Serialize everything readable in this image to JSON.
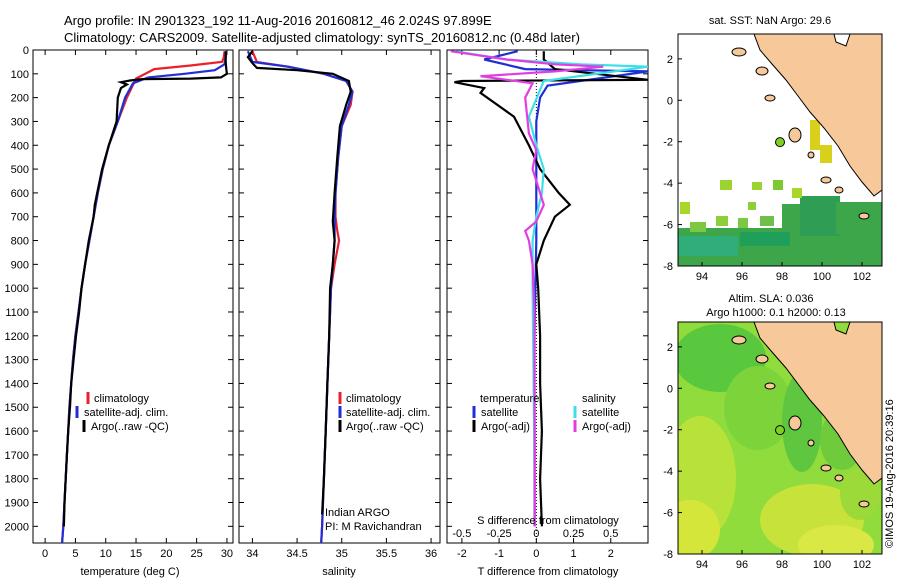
{
  "header": {
    "line1": "Argo profile: IN 2901323_192 11-Aug-2016 20160812_46 2.024S 97.899E",
    "line2": "Climatology: CARS2009. Satellite-adjusted climatology: synTS_20160812.nc (0.48d later)"
  },
  "credit": "©IMOS 19-Aug-2016 20:39:16",
  "colors": {
    "climatology": "#e8212b",
    "satellite": "#1f2fd6",
    "argo": "#000000",
    "satellite_salinity": "#3de0e8",
    "argo_salinity_diff": "#e23de0",
    "land": "#f7c89a",
    "ocean_sst": "#ffffff",
    "ocean_sla": "#8fdc3c",
    "profile_marker": "#7ed321"
  },
  "chart_data": [
    {
      "type": "line",
      "panel": "temperature",
      "xlabel": "temperature (deg C)",
      "xlim": [
        -2,
        31
      ],
      "xticks": [
        "0",
        "5",
        "10",
        "15",
        "20",
        "25",
        "30"
      ],
      "ylim": [
        2070,
        0
      ],
      "yticks": [
        "0",
        "100",
        "200",
        "300",
        "400",
        "500",
        "600",
        "700",
        "800",
        "900",
        "1000",
        "1100",
        "1200",
        "1300",
        "1400",
        "1500",
        "1600",
        "1700",
        "1800",
        "1900",
        "2000"
      ],
      "legend": [
        "climatology",
        "satellite-adj. clim.",
        "Argo(..raw -QC)"
      ],
      "series": [
        {
          "name": "climatology",
          "color_key": "climatology",
          "points": [
            [
              29.6,
              5
            ],
            [
              29.5,
              30
            ],
            [
              29.2,
              50
            ],
            [
              24,
              65
            ],
            [
              18,
              80
            ],
            [
              15,
              120
            ],
            [
              13.5,
              200
            ],
            [
              12,
              300
            ],
            [
              10.5,
              400
            ],
            [
              9.5,
              500
            ],
            [
              8.7,
              600
            ],
            [
              8.0,
              700
            ],
            [
              7.3,
              800
            ],
            [
              6.6,
              900
            ],
            [
              6.0,
              1000
            ],
            [
              5.5,
              1100
            ],
            [
              5.0,
              1200
            ],
            [
              4.6,
              1300
            ],
            [
              4.3,
              1400
            ],
            [
              4.0,
              1500
            ],
            [
              3.8,
              1600
            ],
            [
              3.6,
              1700
            ],
            [
              3.4,
              1800
            ],
            [
              3.2,
              1900
            ],
            [
              3.0,
              2000
            ],
            [
              2.8,
              2070
            ]
          ]
        },
        {
          "name": "satellite-adj. clim.",
          "color_key": "satellite",
          "points": [
            [
              29.9,
              5
            ],
            [
              29.8,
              30
            ],
            [
              29.6,
              60
            ],
            [
              28,
              85
            ],
            [
              23,
              100
            ],
            [
              17,
              115
            ],
            [
              14.5,
              140
            ],
            [
              13.2,
              200
            ],
            [
              12,
              300
            ],
            [
              10.5,
              400
            ],
            [
              9.5,
              500
            ],
            [
              8.7,
              600
            ],
            [
              8.0,
              700
            ],
            [
              7.3,
              800
            ],
            [
              6.6,
              900
            ],
            [
              6.0,
              1000
            ],
            [
              5.5,
              1100
            ],
            [
              5.0,
              1200
            ],
            [
              4.6,
              1300
            ],
            [
              4.3,
              1400
            ],
            [
              4.0,
              1500
            ],
            [
              3.8,
              1600
            ],
            [
              3.6,
              1700
            ],
            [
              3.4,
              1800
            ],
            [
              3.2,
              1900
            ],
            [
              3.0,
              2000
            ],
            [
              2.8,
              2070
            ]
          ]
        },
        {
          "name": "Argo(..raw -QC)",
          "color_key": "argo",
          "points": [
            [
              29.8,
              5
            ],
            [
              29.8,
              50
            ],
            [
              29.9,
              80
            ],
            [
              30,
              100
            ],
            [
              29,
              115
            ],
            [
              24,
              120
            ],
            [
              16,
              122
            ],
            [
              14,
              128
            ],
            [
              12.5,
              135
            ],
            [
              13.5,
              145
            ],
            [
              12.5,
              160
            ],
            [
              12,
              200
            ],
            [
              11.8,
              300
            ],
            [
              10.5,
              400
            ],
            [
              9.4,
              500
            ],
            [
              8.6,
              600
            ],
            [
              8.2,
              650
            ],
            [
              8.0,
              700
            ],
            [
              7.2,
              800
            ],
            [
              6.6,
              900
            ],
            [
              6.0,
              1000
            ],
            [
              5.6,
              1100
            ],
            [
              5.1,
              1200
            ],
            [
              4.7,
              1300
            ],
            [
              4.3,
              1400
            ],
            [
              4.1,
              1500
            ],
            [
              3.8,
              1600
            ],
            [
              3.6,
              1700
            ],
            [
              3.4,
              1800
            ],
            [
              3.2,
              1900
            ],
            [
              3.1,
              2000
            ]
          ]
        }
      ]
    },
    {
      "type": "line",
      "panel": "salinity",
      "xlabel": "salinity",
      "xlim": [
        33.85,
        36.1
      ],
      "xticks": [
        "34",
        "34.5",
        "35",
        "35.5",
        "36"
      ],
      "ylim": [
        2070,
        0
      ],
      "legend": [
        "climatology",
        "satellite-adj. clim.",
        "Argo(..raw -QC)"
      ],
      "annotations": [
        "Indian ARGO",
        "PI: M Ravichandran"
      ],
      "series": [
        {
          "name": "climatology",
          "color_key": "climatology",
          "points": [
            [
              34.0,
              5
            ],
            [
              34.05,
              50
            ],
            [
              34.4,
              70
            ],
            [
              34.8,
              100
            ],
            [
              35.05,
              130
            ],
            [
              35.12,
              175
            ],
            [
              35.1,
              230
            ],
            [
              35.0,
              320
            ],
            [
              34.96,
              450
            ],
            [
              34.93,
              600
            ],
            [
              34.93,
              700
            ],
            [
              34.95,
              760
            ],
            [
              34.97,
              800
            ],
            [
              34.92,
              900
            ],
            [
              34.88,
              1000
            ],
            [
              34.86,
              1200
            ],
            [
              34.84,
              1400
            ],
            [
              34.82,
              1600
            ],
            [
              34.8,
              1800
            ],
            [
              34.78,
              2000
            ],
            [
              34.77,
              2070
            ]
          ]
        },
        {
          "name": "satellite-adj. clim.",
          "color_key": "satellite",
          "points": [
            [
              33.95,
              5
            ],
            [
              34.0,
              50
            ],
            [
              34.4,
              70
            ],
            [
              34.8,
              100
            ],
            [
              35.05,
              130
            ],
            [
              35.12,
              175
            ],
            [
              35.08,
              230
            ],
            [
              35.0,
              320
            ],
            [
              34.96,
              450
            ],
            [
              34.93,
              600
            ],
            [
              34.92,
              700
            ],
            [
              34.92,
              800
            ],
            [
              34.9,
              900
            ],
            [
              34.88,
              1000
            ],
            [
              34.86,
              1200
            ],
            [
              34.84,
              1400
            ],
            [
              34.82,
              1600
            ],
            [
              34.8,
              1800
            ],
            [
              34.78,
              2000
            ],
            [
              34.77,
              2070
            ]
          ]
        },
        {
          "name": "Argo(..raw -QC)",
          "color_key": "argo",
          "points": [
            [
              34.0,
              5
            ],
            [
              33.95,
              30
            ],
            [
              34.0,
              55
            ],
            [
              34.05,
              75
            ],
            [
              34.5,
              85
            ],
            [
              34.9,
              100
            ],
            [
              35.08,
              130
            ],
            [
              35.1,
              175
            ],
            [
              35.05,
              230
            ],
            [
              34.98,
              320
            ],
            [
              34.95,
              450
            ],
            [
              34.92,
              600
            ],
            [
              34.9,
              720
            ],
            [
              34.92,
              800
            ],
            [
              34.9,
              900
            ],
            [
              34.87,
              1000
            ],
            [
              34.86,
              1200
            ],
            [
              34.84,
              1400
            ],
            [
              34.82,
              1600
            ],
            [
              34.8,
              1800
            ],
            [
              34.78,
              1950
            ]
          ]
        }
      ]
    },
    {
      "type": "line",
      "panel": "difference",
      "xlabel": "T difference from climatology",
      "xlabel_top": "S difference from climatology",
      "xlim": [
        -2.4,
        3.0
      ],
      "xticks": [
        "-2",
        "-1",
        "0",
        "1",
        "2"
      ],
      "xticks_top": [
        "-0.5",
        "-0.25",
        "0",
        "0.25",
        "0.5"
      ],
      "ylim": [
        2070,
        0
      ],
      "legend": [
        {
          "group": "temperature",
          "items": [
            "satellite",
            "Argo(-adj)"
          ]
        },
        {
          "group": "salinity",
          "items": [
            "satellite",
            "Argo(-adj)"
          ]
        }
      ],
      "series": [
        {
          "name": "satellite",
          "group": "temperature",
          "color_key": "satellite",
          "points": [
            [
              -0.5,
              5
            ],
            [
              -1.4,
              40
            ],
            [
              -0.3,
              80
            ],
            [
              3.0,
              90
            ],
            [
              0.3,
              150
            ],
            [
              0.1,
              200
            ],
            [
              0.0,
              300
            ],
            [
              0.0,
              500
            ],
            [
              0.0,
              800
            ],
            [
              -0.05,
              1200
            ],
            [
              -0.05,
              1600
            ],
            [
              -0.05,
              2000
            ]
          ]
        },
        {
          "name": "Argo(-adj)",
          "group": "temperature",
          "color_key": "argo",
          "points": [
            [
              0.2,
              5
            ],
            [
              0.2,
              40
            ],
            [
              0.5,
              80
            ],
            [
              3.0,
              125
            ],
            [
              -2.0,
              130
            ],
            [
              -2.2,
              135
            ],
            [
              -1.4,
              160
            ],
            [
              -1.5,
              180
            ],
            [
              -0.6,
              280
            ],
            [
              -0.2,
              400
            ],
            [
              0.1,
              500
            ],
            [
              0.6,
              600
            ],
            [
              0.9,
              650
            ],
            [
              0.5,
              700
            ],
            [
              0.2,
              800
            ],
            [
              0.0,
              900
            ],
            [
              0.05,
              1000
            ],
            [
              0.1,
              1200
            ],
            [
              0.1,
              1400
            ],
            [
              0.15,
              1600
            ],
            [
              0.1,
              1800
            ],
            [
              0.15,
              2000
            ]
          ]
        },
        {
          "name": "satellite",
          "group": "salinity",
          "color_key": "satellite_salinity",
          "points": [
            [
              -2.2,
              5
            ],
            [
              -0.8,
              40
            ],
            [
              1.2,
              60
            ],
            [
              3.0,
              70
            ],
            [
              0.2,
              130
            ],
            [
              -0.2,
              280
            ],
            [
              0.0,
              400
            ],
            [
              0.2,
              500
            ],
            [
              0.15,
              600
            ],
            [
              0.0,
              700
            ],
            [
              -0.1,
              800
            ],
            [
              -0.1,
              1000
            ],
            [
              -0.08,
              1300
            ],
            [
              -0.06,
              1600
            ],
            [
              -0.04,
              2000
            ]
          ]
        },
        {
          "name": "Argo(-adj)",
          "group": "salinity",
          "color_key": "argo_salinity_diff",
          "points": [
            [
              -2.3,
              5
            ],
            [
              -0.8,
              40
            ],
            [
              0.5,
              60
            ],
            [
              1.8,
              70
            ],
            [
              0.5,
              90
            ],
            [
              -1.5,
              110
            ],
            [
              -0.1,
              140
            ],
            [
              -0.3,
              200
            ],
            [
              -0.2,
              350
            ],
            [
              0.0,
              420
            ],
            [
              -0.1,
              500
            ],
            [
              0.1,
              600
            ],
            [
              0.2,
              650
            ],
            [
              0.0,
              720
            ],
            [
              -0.3,
              760
            ],
            [
              -0.2,
              800
            ],
            [
              -0.1,
              900
            ],
            [
              -0.05,
              1100
            ],
            [
              -0.05,
              1400
            ],
            [
              -0.04,
              1700
            ],
            [
              -0.04,
              2000
            ]
          ]
        }
      ]
    },
    {
      "type": "heatmap",
      "panel": "map-sst",
      "title": "sat. SST: NaN Argo: 29.6",
      "xlim": [
        92.8,
        103
      ],
      "ylim": [
        -8,
        3.2
      ],
      "xticks": [
        "94",
        "96",
        "98",
        "100",
        "102"
      ],
      "yticks": [
        "2",
        "0",
        "-2",
        "-4",
        "-6",
        "-8"
      ],
      "marker": [
        97.9,
        -2.02
      ]
    },
    {
      "type": "heatmap",
      "panel": "map-sla",
      "title": "Altim. SLA: 0.036",
      "subtitle": "Argo h1000: 0.1 h2000: 0.13",
      "xlim": [
        92.8,
        103
      ],
      "ylim": [
        -8,
        3.2
      ],
      "xticks": [
        "94",
        "96",
        "98",
        "100",
        "102"
      ],
      "yticks": [
        "2",
        "0",
        "-2",
        "-4",
        "-6",
        "-8"
      ],
      "marker": [
        97.9,
        -2.02
      ]
    }
  ]
}
